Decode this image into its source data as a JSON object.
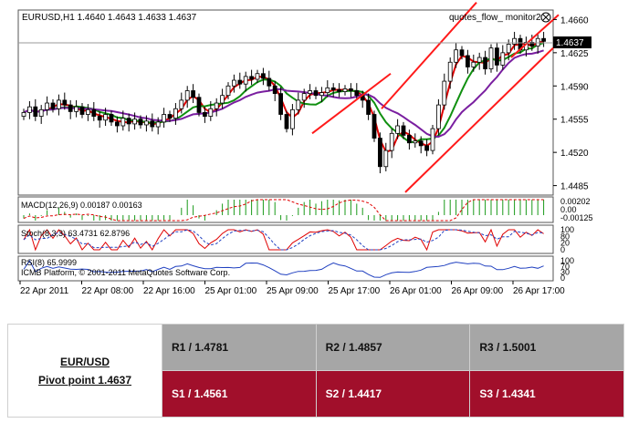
{
  "chart_data": {
    "type": "candlestick",
    "main": {
      "title": "EURUSD,H1  1.4640 1.4643 1.4633 1.4637",
      "indicator_label": "quotes_flow_ monitor2",
      "current_price": "1.4637",
      "y_ticks": [
        "1.4660",
        "1.4625",
        "1.4590",
        "1.4555",
        "1.4520",
        "1.4485"
      ],
      "ylim": [
        1.4475,
        1.467
      ],
      "x_ticks": [
        "22 Apr 2011",
        "22 Apr 08:00",
        "22 Apr 16:00",
        "25 Apr 01:00",
        "25 Apr 09:00",
        "25 Apr 17:00",
        "26 Apr 01:00",
        "26 Apr 09:00",
        "26 Apr 17:00"
      ],
      "colors": {
        "up": "#ffffff",
        "down": "#000000",
        "ma_fast": "#e00000",
        "ma_mid": "#109010",
        "ma_slow": "#7a1fa0",
        "channel": "#ff1a1a"
      }
    },
    "macd": {
      "label": "MACD(12,26,9) 0.00187 0.00163",
      "y_ticks": [
        "0.00202",
        "0.00",
        "-0.00125"
      ]
    },
    "stoch": {
      "label": "Stoch(8,3,3) 63.4731 62.8796",
      "y_ticks": [
        "100",
        "80",
        "20",
        "0"
      ]
    },
    "rsi": {
      "label": "RSI(8) 65.9999",
      "y_ticks": [
        "100",
        "70",
        "30",
        "0"
      ]
    },
    "footer": "ICMB Platform, © 2001-2011 MetaQuotes Software Corp."
  },
  "pivot": {
    "pair": "EUR/USD",
    "pivot_point": "Pivot point 1.4637",
    "resistance": [
      "R1 / 1.4781",
      "R2 / 1.4857",
      "R3 / 1.5001"
    ],
    "support": [
      "S1 / 1.4561",
      "S2 / 1.4417",
      "S3 / 1.4341"
    ]
  }
}
